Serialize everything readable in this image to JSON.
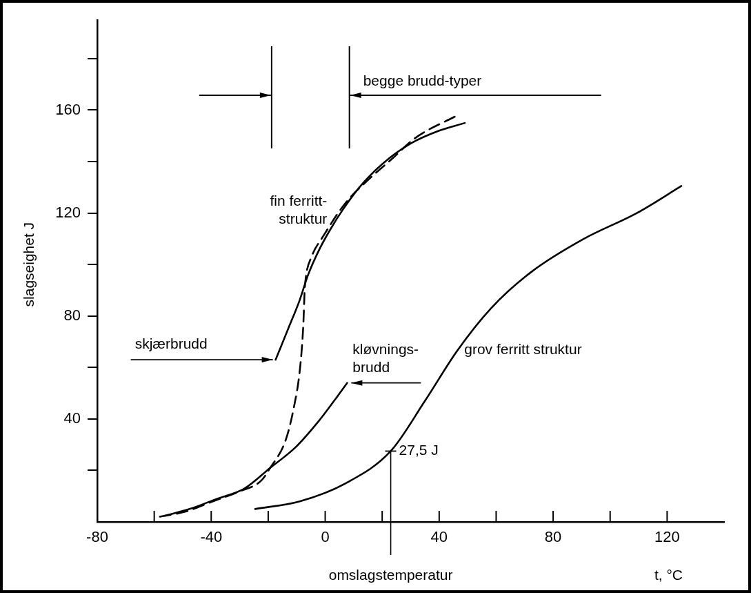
{
  "chart_data": {
    "type": "line",
    "xlabel": "t, °C",
    "ylabel": "slagseighet J",
    "xlim": [
      -80,
      140
    ],
    "xticks": [
      -80,
      {
        "value": -60,
        "label": null
      },
      -40,
      {
        "value": -20,
        "label": null
      },
      0,
      {
        "value": 20,
        "label": null
      },
      40,
      {
        "value": 60,
        "label": null
      },
      80,
      {
        "value": 100,
        "label": null
      },
      120
    ],
    "ylim": [
      0,
      195
    ],
    "yticks": [
      {
        "value": 20,
        "label": null
      },
      40,
      {
        "value": 60,
        "label": null
      },
      80,
      {
        "value": 100,
        "label": null
      },
      120,
      {
        "value": 140,
        "label": null
      },
      160,
      {
        "value": 180,
        "label": null
      }
    ],
    "grid": false,
    "legend": false,
    "marker": "none",
    "series": [
      {
        "name": "fin ferritt-\nstruktur",
        "color": "#000000",
        "line_style": "solid",
        "x": [
          -17.4,
          -13,
          -9,
          -6,
          -2,
          2,
          6,
          12,
          20,
          30,
          40,
          49
        ],
        "values": [
          63,
          75,
          86,
          96,
          106,
          114,
          121,
          130,
          139,
          147,
          152,
          155
        ]
      },
      {
        "color": "#000000",
        "line_style": "dashed",
        "x": [
          -58,
          -49,
          -39.4,
          -29.7,
          -22.5,
          -19.3,
          -13.8,
          -10.9,
          -8.9,
          -7.7,
          -7.2,
          -6.8,
          -4.8,
          -0.7,
          7.2,
          15.2,
          23.4,
          31.4,
          46.4
        ],
        "values": [
          2,
          4,
          8,
          12,
          16,
          21,
          32,
          45,
          59,
          76,
          90,
          95,
          103,
          111,
          124,
          133,
          141,
          149,
          158
        ]
      },
      {
        "color": "#000000",
        "line_style": "solid",
        "x": [
          -56.3,
          -47.6,
          -37.9,
          -28.3,
          -19.3,
          -10.4,
          -2.4,
          3.1,
          7.7
        ],
        "values": [
          2.4,
          5,
          9,
          13,
          21,
          29,
          39,
          47,
          54
        ]
      },
      {
        "name": "grov ferritt struktur",
        "color": "#000000",
        "line_style": "solid",
        "x": [
          -24.6,
          -8.9,
          7.2,
          23,
          35,
          46.4,
          58.2,
          72.2,
          90.8,
          109.4,
          125
        ],
        "values": [
          5,
          8,
          15,
          27.5,
          47,
          66.6,
          83,
          97,
          110,
          120,
          130.5
        ]
      }
    ],
    "ref_lines": [
      {
        "axis": "x",
        "value": -18.8
      },
      {
        "axis": "x",
        "value": 8.5,
        "label": "begge brudd-typer"
      },
      {
        "axis": "x",
        "value": 23,
        "label": "omslagstemperatur"
      }
    ],
    "annotations": [
      {
        "text": "skjærbrudd",
        "x": -17.4,
        "y": 63
      },
      {
        "text": "kløvnings-\nbrudd",
        "x": 7.7,
        "y": 54
      },
      {
        "text": "27,5 J",
        "x": 23,
        "y": 27.5
      }
    ]
  }
}
